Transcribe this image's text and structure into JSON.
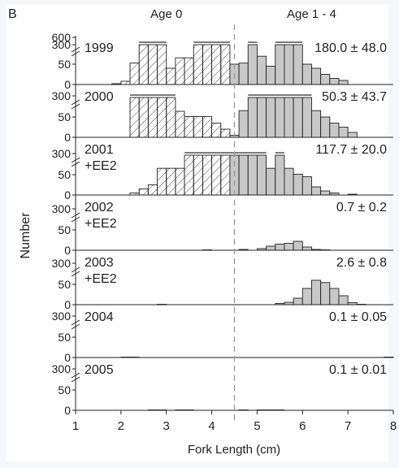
{
  "panel_label": "B",
  "chart_data": {
    "type": "bar",
    "xlabel": "Fork Length (cm)",
    "ylabel": "Number",
    "xlim": [
      1,
      8
    ],
    "x_ticks": [
      1,
      2,
      3,
      4,
      5,
      6,
      7,
      8
    ],
    "bin_width": 0.2,
    "age_split": 4.5,
    "age_labels": [
      {
        "text": "Age 0",
        "x": 3.0
      },
      {
        "text": "Age 1 - 4",
        "x": 6.2
      }
    ],
    "y_scale": "broken",
    "series": [
      {
        "name": "1999",
        "subtitle": "",
        "annotation": "180.0 ± 48.0",
        "y_ticks": [
          "600",
          "300",
          "50",
          "0"
        ],
        "bins": [
          {
            "x": 1.9,
            "v": 2
          },
          {
            "x": 2.1,
            "v": 8
          },
          {
            "x": 2.3,
            "v": 55
          },
          {
            "x": 2.5,
            "v": 300
          },
          {
            "x": 2.7,
            "v": 300
          },
          {
            "x": 2.9,
            "v": 300
          },
          {
            "x": 3.1,
            "v": 40
          },
          {
            "x": 3.3,
            "v": 78
          },
          {
            "x": 3.5,
            "v": 78
          },
          {
            "x": 3.7,
            "v": 300
          },
          {
            "x": 3.9,
            "v": 300
          },
          {
            "x": 4.1,
            "v": 300
          },
          {
            "x": 4.3,
            "v": 300
          },
          {
            "x": 4.5,
            "v": 50
          },
          {
            "x": 4.7,
            "v": 55
          },
          {
            "x": 4.9,
            "v": 300
          },
          {
            "x": 5.1,
            "v": 85
          },
          {
            "x": 5.3,
            "v": 45
          },
          {
            "x": 5.5,
            "v": 300
          },
          {
            "x": 5.7,
            "v": 300
          },
          {
            "x": 5.9,
            "v": 300
          },
          {
            "x": 6.1,
            "v": 50
          },
          {
            "x": 6.3,
            "v": 40
          },
          {
            "x": 6.5,
            "v": 25
          },
          {
            "x": 6.7,
            "v": 15
          },
          {
            "x": 6.9,
            "v": 10
          }
        ]
      },
      {
        "name": "2000",
        "subtitle": "",
        "annotation": "50.3 ± 43.7",
        "y_ticks": [
          "300",
          "50",
          "0"
        ],
        "bins": [
          {
            "x": 2.3,
            "v": 300
          },
          {
            "x": 2.5,
            "v": 300
          },
          {
            "x": 2.7,
            "v": 300
          },
          {
            "x": 2.9,
            "v": 300
          },
          {
            "x": 3.1,
            "v": 300
          },
          {
            "x": 3.3,
            "v": 75
          },
          {
            "x": 3.5,
            "v": 52
          },
          {
            "x": 3.7,
            "v": 52
          },
          {
            "x": 3.9,
            "v": 52
          },
          {
            "x": 4.1,
            "v": 35
          },
          {
            "x": 4.3,
            "v": 20
          },
          {
            "x": 4.5,
            "v": 5
          },
          {
            "x": 4.7,
            "v": 78
          },
          {
            "x": 4.9,
            "v": 300
          },
          {
            "x": 5.1,
            "v": 300
          },
          {
            "x": 5.3,
            "v": 300
          },
          {
            "x": 5.5,
            "v": 300
          },
          {
            "x": 5.7,
            "v": 300
          },
          {
            "x": 5.9,
            "v": 300
          },
          {
            "x": 6.1,
            "v": 300
          },
          {
            "x": 6.3,
            "v": 78
          },
          {
            "x": 6.5,
            "v": 50
          },
          {
            "x": 6.7,
            "v": 35
          },
          {
            "x": 6.9,
            "v": 25
          },
          {
            "x": 7.1,
            "v": 12
          }
        ]
      },
      {
        "name": "2001",
        "subtitle": "+EE2",
        "annotation": "117.7 ± 20.0",
        "y_ticks": [
          "300",
          "50",
          "0"
        ],
        "bins": [
          {
            "x": 2.3,
            "v": 5
          },
          {
            "x": 2.5,
            "v": 15
          },
          {
            "x": 2.7,
            "v": 25
          },
          {
            "x": 2.9,
            "v": 78
          },
          {
            "x": 3.1,
            "v": 78
          },
          {
            "x": 3.3,
            "v": 78
          },
          {
            "x": 3.5,
            "v": 300
          },
          {
            "x": 3.7,
            "v": 300
          },
          {
            "x": 3.9,
            "v": 300
          },
          {
            "x": 4.1,
            "v": 300
          },
          {
            "x": 4.3,
            "v": 300
          },
          {
            "x": 4.5,
            "v": 300
          },
          {
            "x": 4.7,
            "v": 300
          },
          {
            "x": 4.9,
            "v": 300
          },
          {
            "x": 5.1,
            "v": 300
          },
          {
            "x": 5.3,
            "v": 78
          },
          {
            "x": 5.5,
            "v": 300
          },
          {
            "x": 5.7,
            "v": 78
          },
          {
            "x": 5.9,
            "v": 52
          },
          {
            "x": 6.1,
            "v": 45
          },
          {
            "x": 6.3,
            "v": 20
          },
          {
            "x": 6.5,
            "v": 10
          },
          {
            "x": 6.7,
            "v": 5
          },
          {
            "x": 7.1,
            "v": 2
          }
        ]
      },
      {
        "name": "2002",
        "subtitle": "+EE2",
        "annotation": "0.7 ± 0.2",
        "y_ticks": [
          "300",
          "50",
          "0"
        ],
        "bins": [
          {
            "x": 3.9,
            "v": 1
          },
          {
            "x": 4.7,
            "v": 2
          },
          {
            "x": 5.1,
            "v": 4
          },
          {
            "x": 5.3,
            "v": 10
          },
          {
            "x": 5.5,
            "v": 15
          },
          {
            "x": 5.7,
            "v": 17
          },
          {
            "x": 5.9,
            "v": 22
          },
          {
            "x": 6.1,
            "v": 8
          },
          {
            "x": 6.3,
            "v": 2
          },
          {
            "x": 6.5,
            "v": 1
          }
        ]
      },
      {
        "name": "2003",
        "subtitle": "+EE2",
        "annotation": "2.6 ± 0.8",
        "y_ticks": [
          "300",
          "50",
          "0"
        ],
        "bins": [
          {
            "x": 2.9,
            "v": 1
          },
          {
            "x": 5.5,
            "v": 3
          },
          {
            "x": 5.7,
            "v": 6
          },
          {
            "x": 5.9,
            "v": 16
          },
          {
            "x": 6.1,
            "v": 40
          },
          {
            "x": 6.3,
            "v": 68
          },
          {
            "x": 6.5,
            "v": 58
          },
          {
            "x": 6.7,
            "v": 40
          },
          {
            "x": 6.9,
            "v": 22
          },
          {
            "x": 7.1,
            "v": 5
          },
          {
            "x": 7.3,
            "v": 1
          }
        ]
      },
      {
        "name": "2004",
        "subtitle": "",
        "annotation": "0.1 ± 0.05",
        "y_ticks": [
          "300",
          "50",
          "0"
        ],
        "bins": [
          {
            "x": 2.1,
            "v": 1
          },
          {
            "x": 2.3,
            "v": 1
          },
          {
            "x": 7.9,
            "v": 1
          }
        ]
      },
      {
        "name": "2005",
        "subtitle": "",
        "annotation": "0.1 ± 0.01",
        "y_ticks": [
          "300",
          "50",
          "0"
        ],
        "bins": [
          {
            "x": 2.7,
            "v": 1
          },
          {
            "x": 2.9,
            "v": 1
          },
          {
            "x": 3.3,
            "v": 1
          },
          {
            "x": 3.5,
            "v": 1
          },
          {
            "x": 4.7,
            "v": 1
          },
          {
            "x": 5.1,
            "v": 1
          },
          {
            "x": 5.3,
            "v": 1
          },
          {
            "x": 5.5,
            "v": 1
          }
        ]
      }
    ]
  },
  "colors": {
    "age0_fill": "#ffffff",
    "age14_fill": "#c8c8c8",
    "stroke": "#222222",
    "split_line": "#999999"
  }
}
